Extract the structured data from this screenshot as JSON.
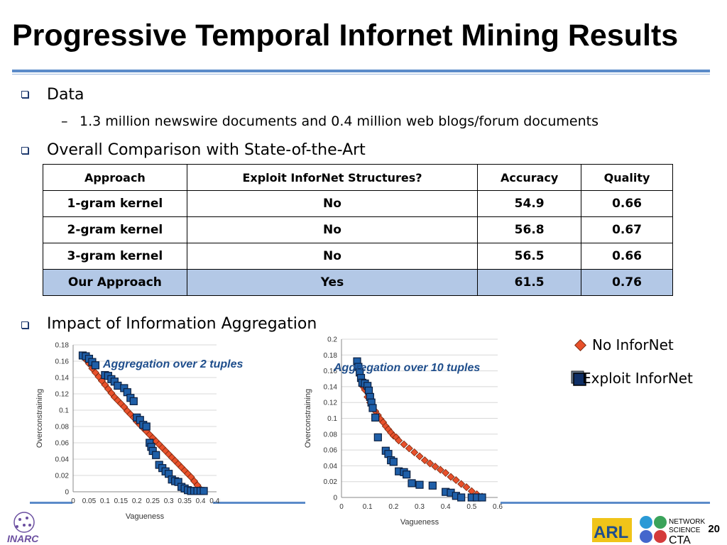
{
  "slide": {
    "title": "Progressive Temporal Infornet Mining Results",
    "page_number": "20",
    "colors": {
      "accent": "#5b8bc9",
      "highlight_row": "#b3c8e6",
      "no_infornet": "#e8502a",
      "exploit_infornet": "#1f5fa8",
      "caption": "#1f4e8c"
    }
  },
  "bullets": {
    "data_label": "Data",
    "data_sub": "1.3 million newswire documents and 0.4 million web blogs/forum documents",
    "dash": "–",
    "comparison_label": "Overall Comparison with State-of-the-Art",
    "impact_label": "Impact of Information Aggregation"
  },
  "table": {
    "headers": [
      "Approach",
      "Exploit InforNet Structures?",
      "Accuracy",
      "Quality"
    ],
    "rows": [
      [
        "1-gram kernel",
        "No",
        "54.9",
        "0.66"
      ],
      [
        "2-gram kernel",
        "No",
        "56.8",
        "0.67"
      ],
      [
        "3-gram kernel",
        "No",
        "56.5",
        "0.66"
      ],
      [
        "Our Approach",
        "Yes",
        "61.5",
        "0.76"
      ]
    ]
  },
  "legend": {
    "no_infornet": "No InforNet",
    "exploit_infornet": "Exploit InforNet"
  },
  "chart_data": [
    {
      "type": "scatter",
      "caption": "Aggregation over 2 tuples",
      "xlabel": "Vagueness",
      "ylabel": "Overconstraining",
      "xlim": [
        0,
        0.45
      ],
      "ylim": [
        0,
        0.18
      ],
      "xticks": [
        "0",
        "0.05",
        "0.1",
        "0.15",
        "0.2",
        "0.25",
        "0.3",
        "0.35",
        "0.4",
        "0.45"
      ],
      "yticks": [
        "0",
        "0.02",
        "0.04",
        "0.06",
        "0.08",
        "0.1",
        "0.12",
        "0.14",
        "0.16",
        "0.18"
      ],
      "series": [
        {
          "name": "No InforNet",
          "marker": "diamond",
          "x": [
            0.03,
            0.04,
            0.05,
            0.06,
            0.07,
            0.08,
            0.09,
            0.1,
            0.11,
            0.12,
            0.13,
            0.14,
            0.15,
            0.16,
            0.17,
            0.18,
            0.19,
            0.2,
            0.21,
            0.22,
            0.23,
            0.24,
            0.25,
            0.26,
            0.27,
            0.28,
            0.29,
            0.3,
            0.31,
            0.32,
            0.33,
            0.34,
            0.35,
            0.36,
            0.37,
            0.38,
            0.39,
            0.4
          ],
          "y": [
            0.166,
            0.162,
            0.157,
            0.151,
            0.146,
            0.141,
            0.136,
            0.131,
            0.126,
            0.121,
            0.116,
            0.112,
            0.108,
            0.104,
            0.099,
            0.095,
            0.091,
            0.086,
            0.082,
            0.078,
            0.074,
            0.07,
            0.066,
            0.062,
            0.058,
            0.054,
            0.05,
            0.046,
            0.042,
            0.038,
            0.034,
            0.03,
            0.026,
            0.022,
            0.018,
            0.013,
            0.008,
            0.003
          ]
        },
        {
          "name": "Exploit InforNet",
          "marker": "square",
          "x": [
            0.03,
            0.04,
            0.05,
            0.06,
            0.07,
            0.1,
            0.11,
            0.12,
            0.13,
            0.14,
            0.16,
            0.17,
            0.18,
            0.19,
            0.2,
            0.21,
            0.22,
            0.23,
            0.24,
            0.245,
            0.25,
            0.26,
            0.27,
            0.28,
            0.29,
            0.3,
            0.31,
            0.32,
            0.33,
            0.34,
            0.35,
            0.36,
            0.37,
            0.38,
            0.39,
            0.4,
            0.41
          ],
          "y": [
            0.167,
            0.166,
            0.163,
            0.159,
            0.155,
            0.143,
            0.142,
            0.138,
            0.135,
            0.13,
            0.127,
            0.122,
            0.115,
            0.111,
            0.091,
            0.088,
            0.082,
            0.08,
            0.06,
            0.055,
            0.05,
            0.045,
            0.033,
            0.029,
            0.025,
            0.022,
            0.015,
            0.013,
            0.012,
            0.006,
            0.004,
            0.002,
            0.001,
            0.001,
            0.001,
            0.001,
            0.001
          ]
        }
      ]
    },
    {
      "type": "scatter",
      "caption": "Aggregation over 10 tuples",
      "xlabel": "Vagueness",
      "ylabel": "Overconstraining",
      "xlim": [
        0,
        0.6
      ],
      "ylim": [
        0,
        0.2
      ],
      "xticks": [
        "0",
        "0.1",
        "0.2",
        "0.3",
        "0.4",
        "0.5",
        "0.6"
      ],
      "yticks": [
        "0",
        "0.02",
        "0.04",
        "0.06",
        "0.08",
        "0.1",
        "0.12",
        "0.14",
        "0.16",
        "0.18",
        "0.2"
      ],
      "series": [
        {
          "name": "No InforNet",
          "marker": "diamond",
          "x": [
            0.06,
            0.065,
            0.07,
            0.075,
            0.08,
            0.09,
            0.1,
            0.11,
            0.12,
            0.13,
            0.14,
            0.15,
            0.16,
            0.17,
            0.18,
            0.19,
            0.2,
            0.21,
            0.22,
            0.24,
            0.26,
            0.28,
            0.3,
            0.32,
            0.34,
            0.36,
            0.38,
            0.4,
            0.42,
            0.44,
            0.46,
            0.48,
            0.5,
            0.52,
            0.54
          ],
          "y": [
            0.168,
            0.162,
            0.155,
            0.148,
            0.141,
            0.136,
            0.127,
            0.12,
            0.114,
            0.109,
            0.104,
            0.099,
            0.095,
            0.09,
            0.086,
            0.082,
            0.078,
            0.076,
            0.072,
            0.067,
            0.062,
            0.057,
            0.052,
            0.047,
            0.043,
            0.039,
            0.035,
            0.031,
            0.026,
            0.022,
            0.017,
            0.013,
            0.008,
            0.004,
            0.001
          ]
        },
        {
          "name": "Exploit InforNet",
          "marker": "square",
          "x": [
            0.06,
            0.065,
            0.07,
            0.075,
            0.08,
            0.09,
            0.1,
            0.105,
            0.11,
            0.115,
            0.12,
            0.13,
            0.14,
            0.17,
            0.18,
            0.19,
            0.2,
            0.22,
            0.24,
            0.25,
            0.27,
            0.3,
            0.35,
            0.4,
            0.42,
            0.44,
            0.46,
            0.5,
            0.52,
            0.54
          ],
          "y": [
            0.172,
            0.165,
            0.158,
            0.151,
            0.145,
            0.144,
            0.141,
            0.135,
            0.127,
            0.12,
            0.113,
            0.101,
            0.076,
            0.059,
            0.055,
            0.047,
            0.045,
            0.033,
            0.032,
            0.029,
            0.018,
            0.016,
            0.015,
            0.007,
            0.006,
            0.002,
            0.0,
            0.0,
            0.0,
            0.0
          ]
        }
      ]
    }
  ]
}
